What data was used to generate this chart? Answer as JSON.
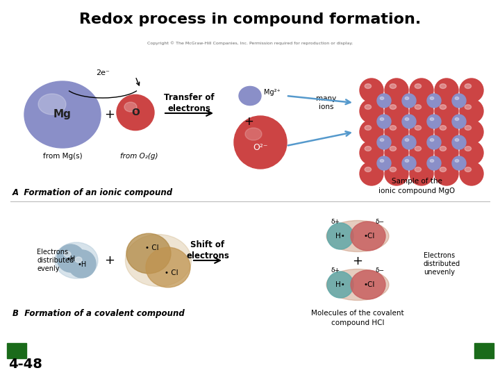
{
  "title": "Redox process in compound formation.",
  "title_fontsize": 16,
  "title_fontweight": "bold",
  "bg_color": "#ffffff",
  "slide_number": "4-48",
  "slide_number_fontsize": 14,
  "slide_number_fontweight": "bold",
  "copyright_text": "Copyright © The McGraw-Hill Companies, Inc. Permission required for reproduction or display.",
  "section_A_label": "A  Formation of an ionic compound",
  "section_B_label": "B  Formation of a covalent compound",
  "transfer_label": "Transfer of\nelectrons",
  "shift_label": "Shift of\nelectrons",
  "many_ions_label": "many\nions",
  "sample_label": "Sample of the\nionic compound MgO",
  "molecules_label": "Molecules of the covalent\ncompound HCl",
  "electrons_evenly_label": "Electrons\ndistributed\nevenly",
  "electrons_unevenly_label": "Electrons\ndistributed\nunevenly",
  "from_Mg_label": "from Mg(s)",
  "from_O2_label": "from O₂(g)",
  "Mg_color": "#8a8fc8",
  "O_color": "#cc4444",
  "green_box_color": "#1a6b1a"
}
